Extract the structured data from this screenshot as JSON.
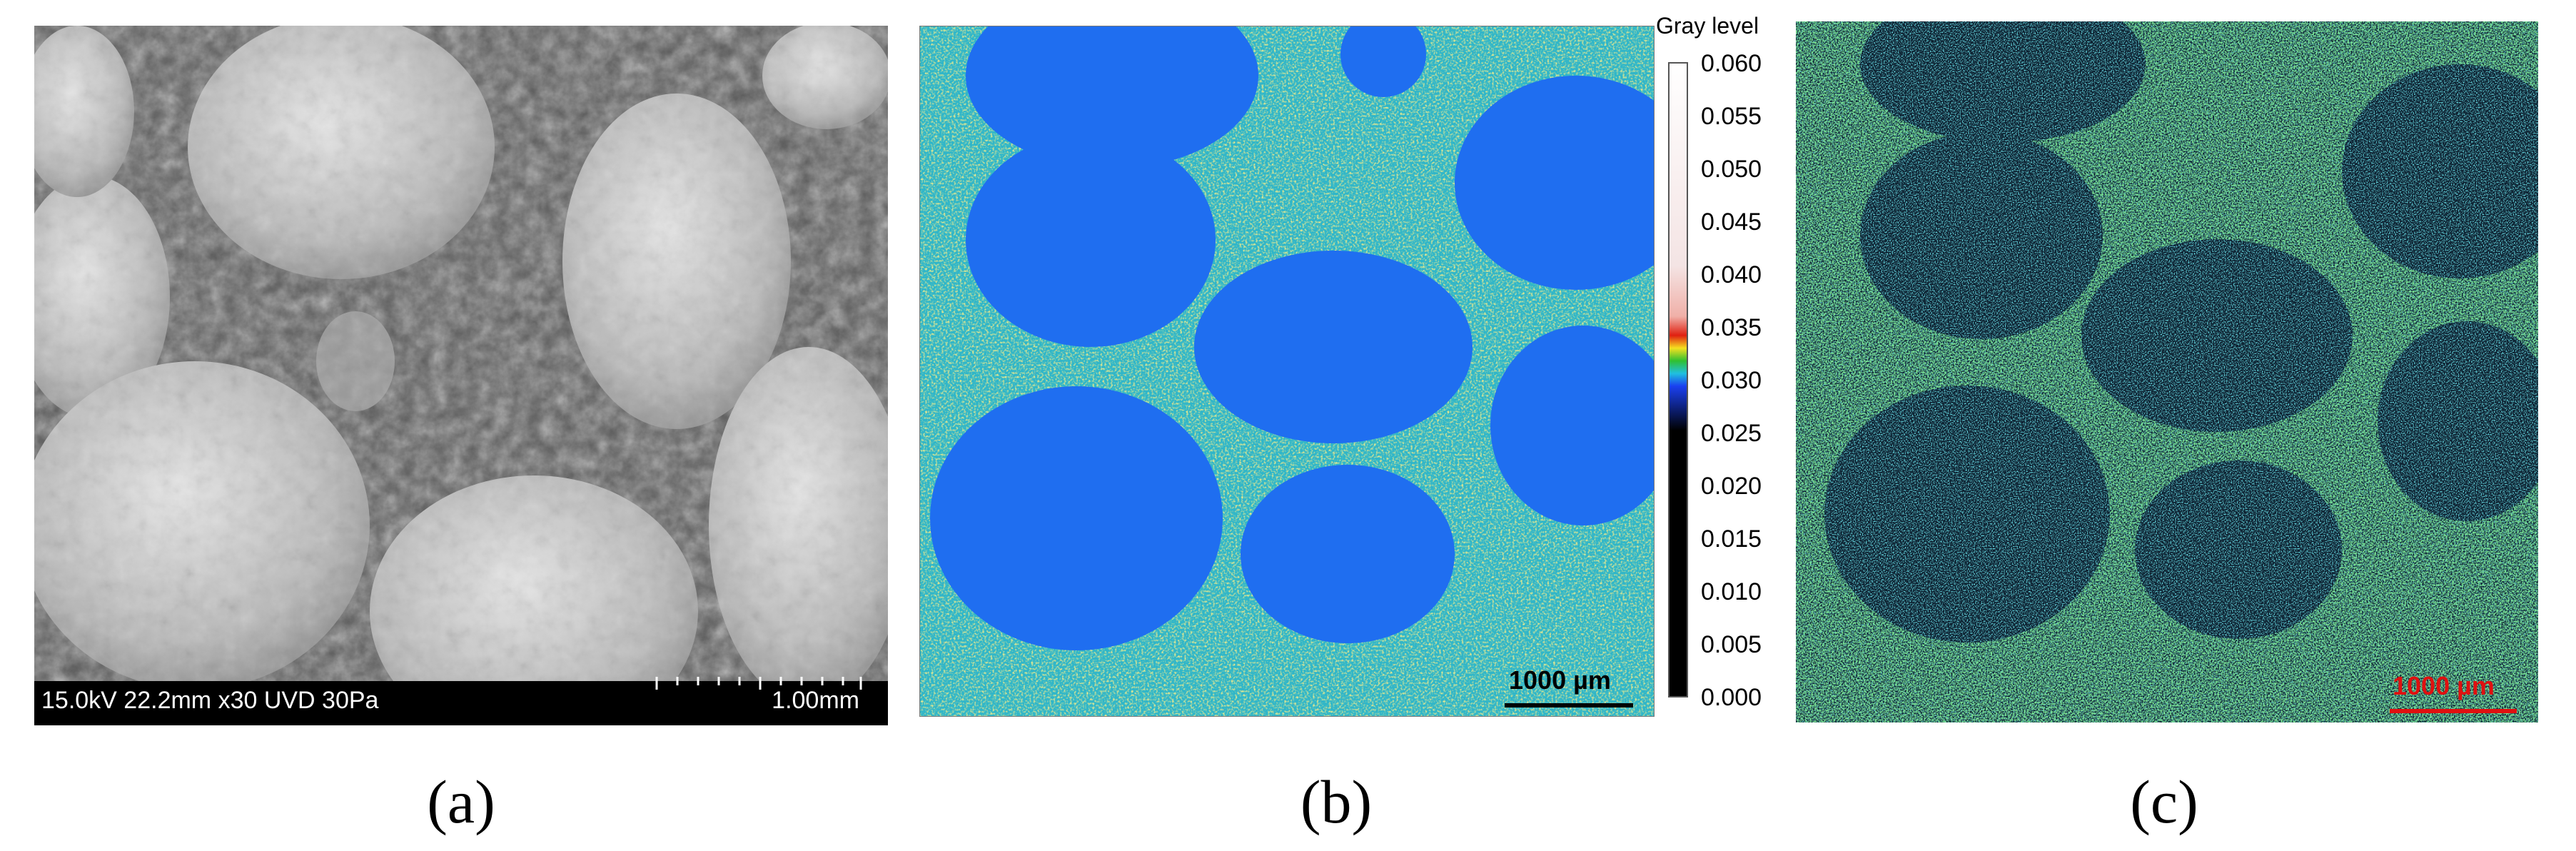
{
  "panels": {
    "a": {
      "caption": "(a)",
      "info_text": "15.0kV 22.2mm x30 UVD 30Pa",
      "scale_text": "1.00mm"
    },
    "b": {
      "caption": "(b)",
      "scale_text": "1000 µm",
      "colorbar": {
        "title": "Gray level",
        "ticks": [
          "0.060",
          "0.055",
          "0.050",
          "0.045",
          "0.040",
          "0.035",
          "0.030",
          "0.025",
          "0.020",
          "0.015",
          "0.010",
          "0.005",
          "0.000"
        ]
      }
    },
    "c": {
      "caption": "(c)",
      "scale_text": "1000 µm"
    }
  },
  "colors": {
    "background_blue": "#1f6ef0",
    "accent_red": "#e01010",
    "noise_green": "#2fc26a",
    "noise_cyan": "#27c5d6"
  }
}
